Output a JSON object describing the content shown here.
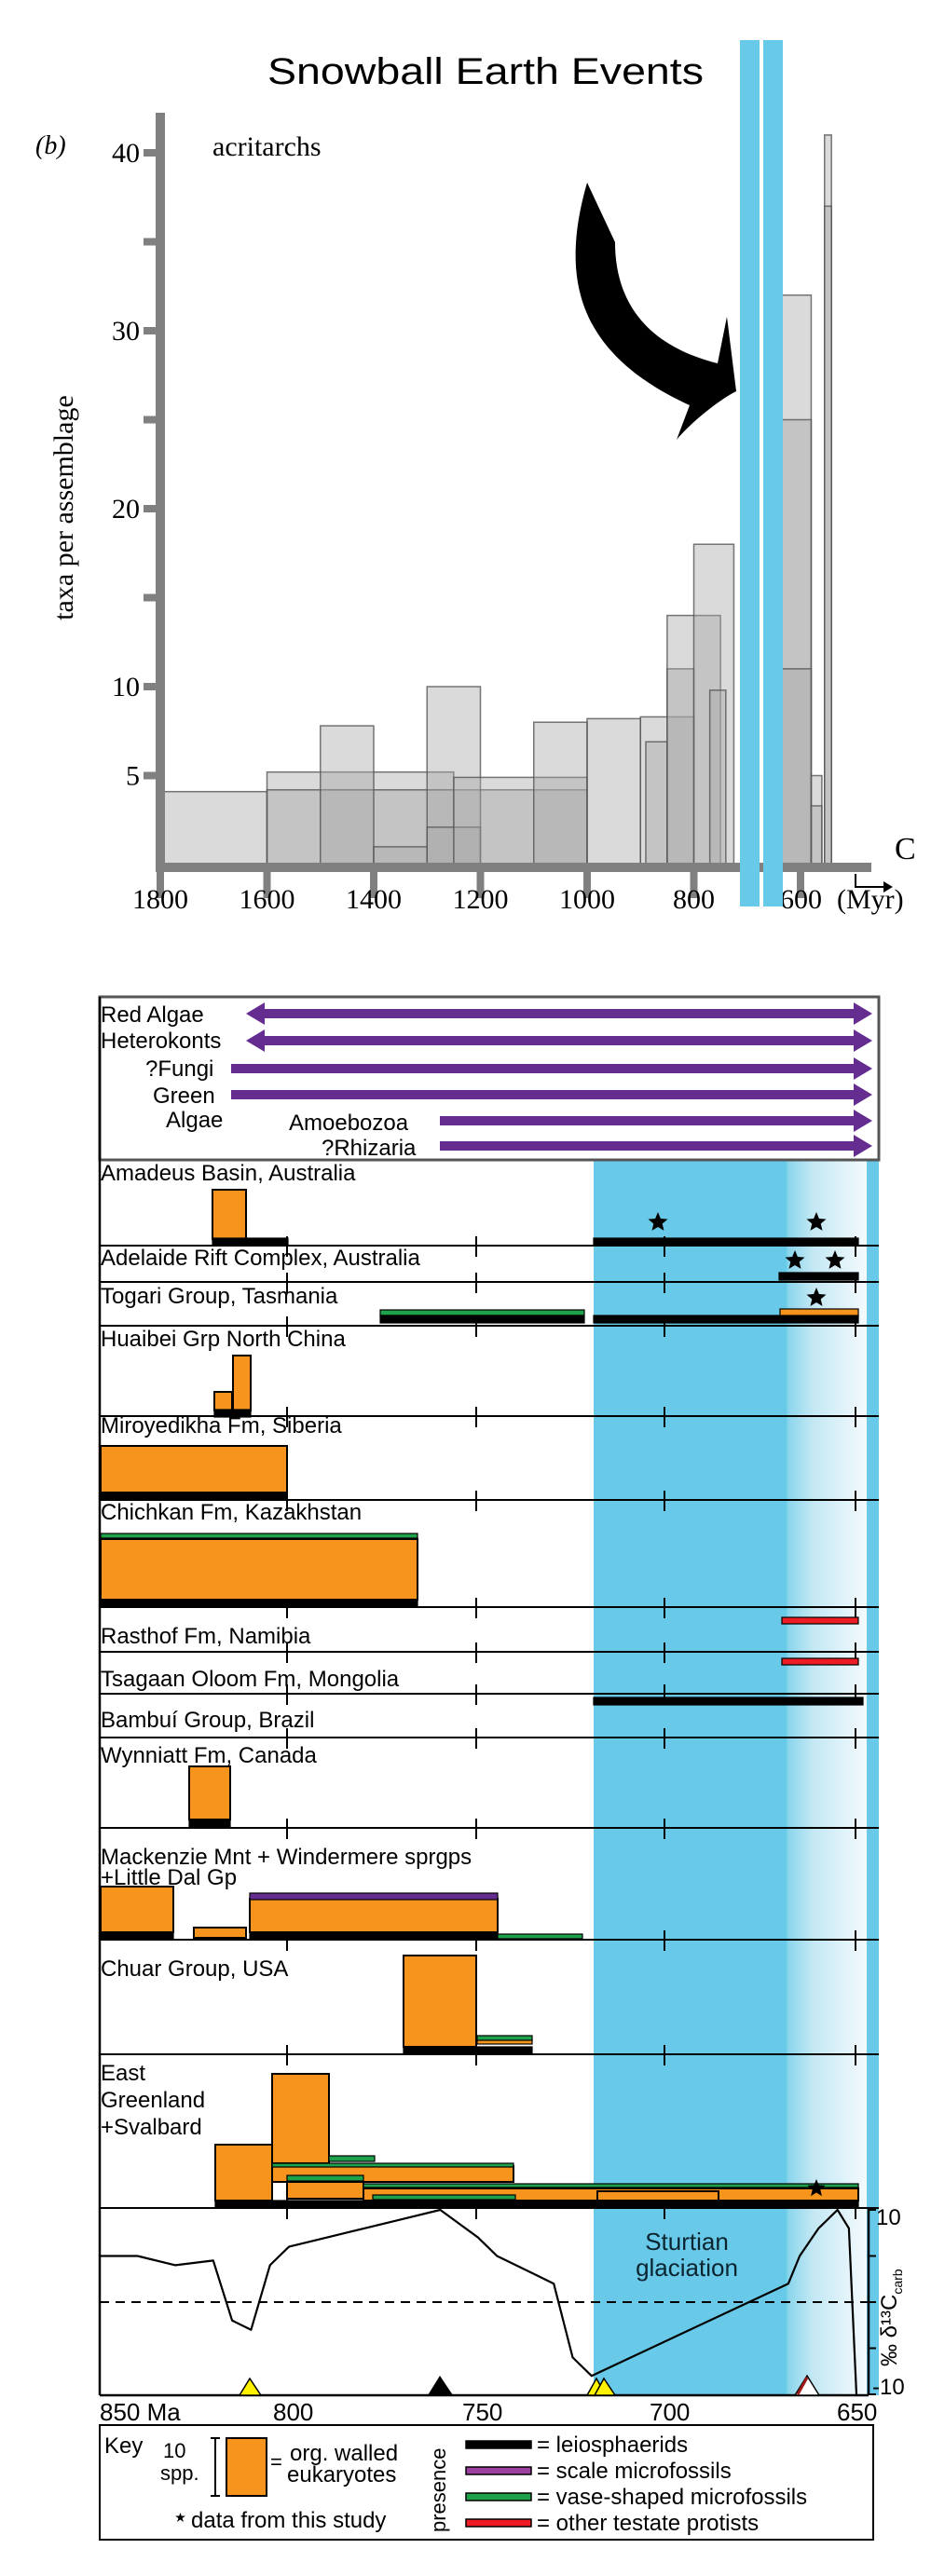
{
  "annotation": {
    "title": "Snowball Earth Events",
    "blue_bars": [
      {
        "x": 794,
        "w": 21
      },
      {
        "x": 819,
        "w": 21
      }
    ],
    "blue_color": "#69C9E8"
  },
  "panel_b": {
    "label": "(b)",
    "series_label": "acritarchs",
    "ylabel": "taxa per assemblage",
    "xlabel_unit": "(Myr)",
    "cambrian_marker": "C",
    "x_ticks": [
      "1800",
      "1600",
      "1400",
      "1200",
      "1000",
      "800",
      "600"
    ],
    "y_ticks": [
      "5",
      "10",
      "20",
      "30",
      "40"
    ]
  },
  "panel_lower": {
    "lineages": [
      {
        "label": "Red Algae",
        "start_ma": 850,
        "arrow_left": true
      },
      {
        "label": "Heterokonts",
        "start_ma": 850,
        "arrow_left": true
      },
      {
        "label": "?Fungi",
        "start_ma": 850,
        "arrow_left": false
      },
      {
        "label": "Green",
        "start_ma": 850,
        "arrow_left": false
      },
      {
        "label": "Algae",
        "start_ma": null,
        "arrow_left": false
      },
      {
        "label": "Amoebozoa",
        "start_ma": 760,
        "arrow_left": false
      },
      {
        "label": "?Rhizaria",
        "start_ma": 760,
        "arrow_left": false
      }
    ],
    "localities": [
      "Amadeus Basin, Australia",
      "Adelaide Rift Complex, Australia",
      "Togari Group, Tasmania",
      "Huaibei Grp North China",
      "Miroyedikha Fm, Siberia",
      "Chichkan Fm, Kazakhstan",
      "Rasthof Fm, Namibia",
      "Tsagaan Oloom Fm, Mongolia",
      "Bambuí Group, Brazil",
      "Wynniatt Fm, Canada",
      "Mackenzie Mnt + Windermere sprgps",
      "+Little Dal Gp",
      "Chuar Group, USA",
      "East",
      "Greenland",
      "+Svalbard"
    ],
    "glaciation_label_1": "Sturtian",
    "glaciation_label_2": "glaciation",
    "d13c_axis": {
      "top": "10",
      "bottom": "-10",
      "label": "‰ δ¹³C",
      "sub": "carb"
    },
    "x_ticks": [
      "850 Ma",
      "800",
      "750",
      "700",
      "650"
    ],
    "colors": {
      "orange": "#F7941D",
      "purple": "#662D91",
      "green": "#1FA04A",
      "red": "#ED1C24",
      "black": "#000000",
      "yellow": "#FFF200"
    }
  },
  "key": {
    "title": "Key",
    "scale_label_1": "10",
    "scale_label_2": "spp.",
    "box_label_1": "org. walled",
    "box_label_2": "eukaryotes",
    "star_label": "data from this study",
    "presence_label": "presence",
    "items": [
      {
        "label": "= leiosphaerids",
        "color": "#000000"
      },
      {
        "label": "= scale microfossils",
        "color": "#9B3FA0"
      },
      {
        "label": "= vase-shaped microfossils",
        "color": "#1FA04A"
      },
      {
        "label": "= other testate protists",
        "color": "#ED1C24"
      }
    ]
  },
  "chart_data": [
    {
      "type": "bar",
      "title": "acritarchs",
      "xlabel": "(Myr)",
      "ylabel": "taxa per assemblage",
      "xlim": [
        1800,
        540
      ],
      "ylim": [
        0,
        42
      ],
      "note": "overlapping translucent range boxes; x = age range (Ma), y = taxa per assemblage",
      "boxes": [
        {
          "from": 1800,
          "to": 1600,
          "value": 4.1
        },
        {
          "from": 1600,
          "to": 1250,
          "value": 5.2
        },
        {
          "from": 1600,
          "to": 1000,
          "value": 4.2
        },
        {
          "from": 1500,
          "to": 1400,
          "value": 7.8
        },
        {
          "from": 1400,
          "to": 1300,
          "value": 1.0
        },
        {
          "from": 1300,
          "to": 1200,
          "value": 10.0
        },
        {
          "from": 1300,
          "to": 1200,
          "value": 2.1
        },
        {
          "from": 1250,
          "to": 1000,
          "value": 4.9
        },
        {
          "from": 1100,
          "to": 1000,
          "value": 8.0
        },
        {
          "from": 1000,
          "to": 900,
          "value": 8.2
        },
        {
          "from": 900,
          "to": 800,
          "value": 8.3
        },
        {
          "from": 890,
          "to": 850,
          "value": 6.9
        },
        {
          "from": 850,
          "to": 800,
          "value": 11.0
        },
        {
          "from": 850,
          "to": 750,
          "value": 14.0
        },
        {
          "from": 800,
          "to": 725,
          "value": 18.0
        },
        {
          "from": 770,
          "to": 740,
          "value": 9.8
        },
        {
          "from": 640,
          "to": 580,
          "value": 32.0
        },
        {
          "from": 640,
          "to": 580,
          "value": 25.0
        },
        {
          "from": 640,
          "to": 580,
          "value": 11.0
        },
        {
          "from": 580,
          "to": 560,
          "value": 5.0
        },
        {
          "from": 580,
          "to": 560,
          "value": 3.3
        },
        {
          "from": 555,
          "to": 542,
          "value": 41.0
        },
        {
          "from": 555,
          "to": 542,
          "value": 37.0
        }
      ],
      "annotations": [
        "Snowball Earth Events"
      ]
    },
    {
      "type": "line",
      "title": "δ13C carb",
      "ylabel": "‰ δ13C carb",
      "xlim": [
        850,
        645
      ],
      "ylim": [
        -10,
        10
      ],
      "x": [
        850,
        840,
        830,
        820,
        815,
        810,
        805,
        800,
        790,
        780,
        770,
        760,
        750,
        745,
        735,
        730,
        725,
        720,
        668,
        665,
        660,
        655,
        652,
        650
      ],
      "y": [
        5,
        5,
        4,
        4.5,
        -2,
        -3,
        4,
        6,
        7,
        8,
        9,
        10,
        7,
        5,
        3,
        2,
        -6,
        -8,
        2,
        5,
        8,
        10,
        8,
        -10
      ],
      "reference_line": 0,
      "annotations": [
        "Sturtian glaciation"
      ]
    }
  ]
}
